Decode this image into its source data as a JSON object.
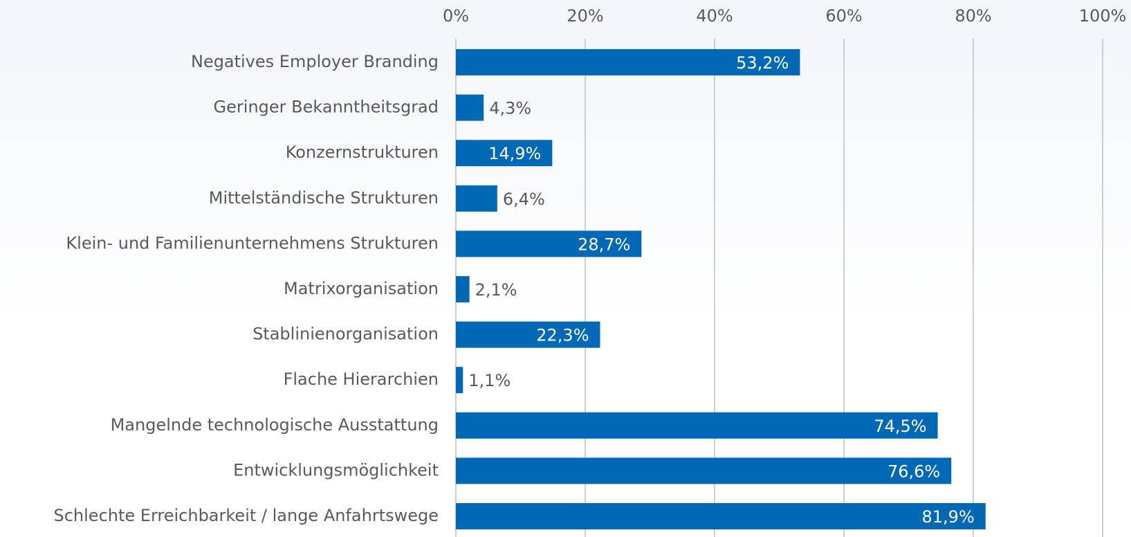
{
  "chart_data": {
    "type": "bar",
    "orientation": "horizontal",
    "categories": [
      "Negatives Employer Branding",
      "Geringer Bekanntheitsgrad",
      "Konzernstrukturen",
      "Mittelständische Strukturen",
      "Klein- und Familienunternehmens Strukturen",
      "Matrixorganisation",
      "Stablinienorganisation",
      "Flache Hierarchien",
      "Mangelnde technologische Ausstattung",
      "Entwicklungsmöglichkeit",
      "Schlechte Erreichbarkeit / lange Anfahrtswege"
    ],
    "values": [
      53.2,
      4.3,
      14.9,
      6.4,
      28.7,
      2.1,
      22.3,
      1.1,
      74.5,
      76.6,
      81.9
    ],
    "value_labels": [
      "53,2%",
      "4,3%",
      "14,9%",
      "6,4%",
      "28,7%",
      "2,1%",
      "22,3%",
      "1,1%",
      "74,5%",
      "76,6%",
      "81,9%"
    ],
    "color": "#0068b4",
    "xlim": [
      0,
      100
    ],
    "xticks": [
      {
        "value": 0,
        "label": "0%"
      },
      {
        "value": 20,
        "label": "20%"
      },
      {
        "value": 40,
        "label": "40%"
      },
      {
        "value": 60,
        "label": "60%"
      },
      {
        "value": 80,
        "label": "80%"
      },
      {
        "value": 100,
        "label": "100%"
      }
    ],
    "grid": true
  }
}
